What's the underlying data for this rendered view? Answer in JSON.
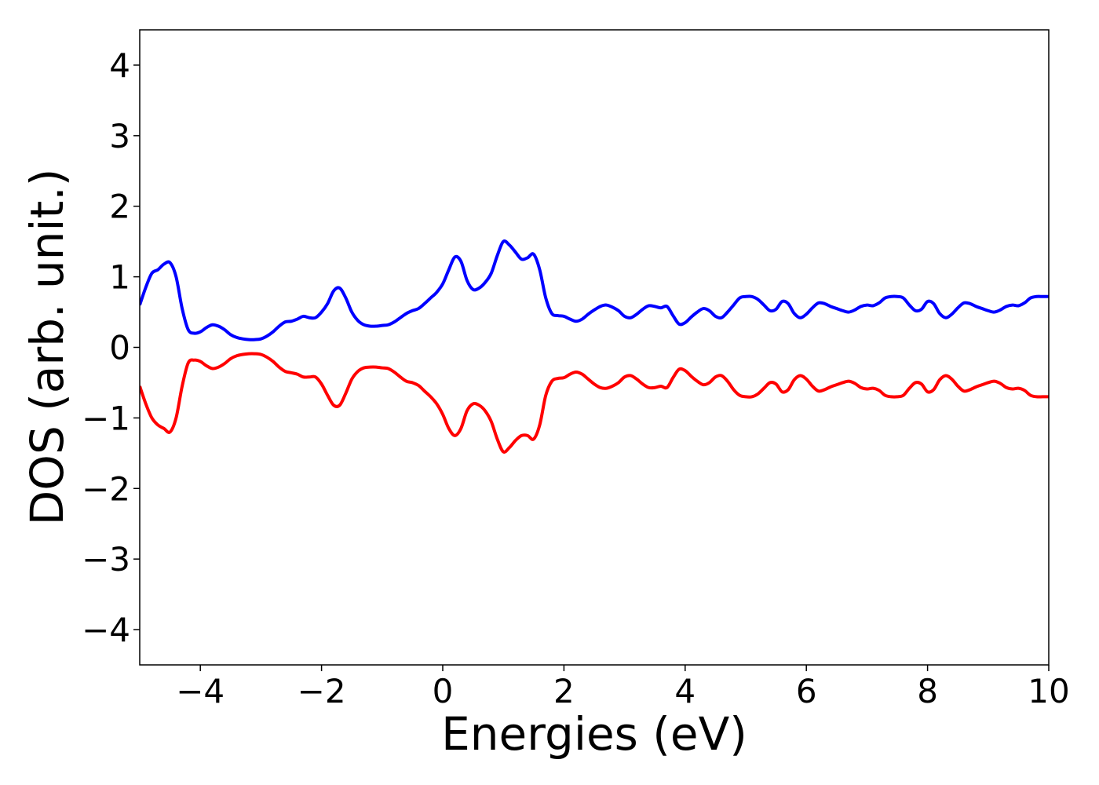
{
  "chart_data": {
    "type": "line",
    "title": "",
    "xlabel": "Energies (eV)",
    "ylabel": "DOS (arb. unit.)",
    "xlim": [
      -5,
      10
    ],
    "ylim": [
      -4.5,
      4.5
    ],
    "xticks": [
      -4,
      -2,
      0,
      2,
      4,
      6,
      8,
      10
    ],
    "yticks": [
      -4,
      -3,
      -2,
      -1,
      0,
      1,
      2,
      3,
      4
    ],
    "xtick_labels": [
      "−4",
      "−2",
      "0",
      "2",
      "4",
      "6",
      "8",
      "10"
    ],
    "ytick_labels": [
      "−4",
      "−3",
      "−2",
      "−1",
      "0",
      "1",
      "2",
      "3",
      "4"
    ],
    "grid": false,
    "legend": "none",
    "series": [
      {
        "color": "#0000ff",
        "x": [
          -5.0,
          -4.9,
          -4.8,
          -4.7,
          -4.6,
          -4.5,
          -4.4,
          -4.3,
          -4.2,
          -4.1,
          -4.0,
          -3.9,
          -3.8,
          -3.7,
          -3.6,
          -3.5,
          -3.4,
          -3.3,
          -3.2,
          -3.1,
          -3.0,
          -2.9,
          -2.8,
          -2.7,
          -2.6,
          -2.5,
          -2.4,
          -2.3,
          -2.2,
          -2.1,
          -2.0,
          -1.9,
          -1.8,
          -1.7,
          -1.6,
          -1.5,
          -1.4,
          -1.3,
          -1.2,
          -1.1,
          -1.0,
          -0.9,
          -0.8,
          -0.7,
          -0.6,
          -0.5,
          -0.4,
          -0.3,
          -0.2,
          -0.1,
          0.0,
          0.1,
          0.2,
          0.3,
          0.4,
          0.5,
          0.6,
          0.7,
          0.8,
          0.9,
          1.0,
          1.1,
          1.2,
          1.3,
          1.4,
          1.5,
          1.6,
          1.7,
          1.8,
          1.9,
          2.0,
          2.1,
          2.2,
          2.3,
          2.4,
          2.5,
          2.6,
          2.7,
          2.8,
          2.9,
          3.0,
          3.1,
          3.2,
          3.3,
          3.4,
          3.5,
          3.6,
          3.7,
          3.8,
          3.9,
          4.0,
          4.1,
          4.2,
          4.3,
          4.4,
          4.5,
          4.6,
          4.7,
          4.8,
          4.9,
          5.0,
          5.1,
          5.2,
          5.3,
          5.4,
          5.5,
          5.6,
          5.7,
          5.8,
          5.9,
          6.0,
          6.1,
          6.2,
          6.3,
          6.4,
          6.5,
          6.6,
          6.7,
          6.8,
          6.9,
          7.0,
          7.1,
          7.2,
          7.3,
          7.4,
          7.5,
          7.6,
          7.7,
          7.8,
          7.9,
          8.0,
          8.1,
          8.2,
          8.3,
          8.4,
          8.5,
          8.6,
          8.7,
          8.8,
          8.9,
          9.0,
          9.1,
          9.2,
          9.3,
          9.4,
          9.5,
          9.6,
          9.7,
          9.8,
          9.9,
          10.0
        ],
        "y": [
          0.6,
          0.85,
          1.05,
          1.1,
          1.18,
          1.2,
          1.0,
          0.55,
          0.25,
          0.2,
          0.22,
          0.28,
          0.32,
          0.3,
          0.25,
          0.18,
          0.14,
          0.12,
          0.11,
          0.11,
          0.12,
          0.16,
          0.22,
          0.3,
          0.36,
          0.37,
          0.4,
          0.44,
          0.42,
          0.42,
          0.5,
          0.62,
          0.8,
          0.84,
          0.7,
          0.5,
          0.38,
          0.32,
          0.3,
          0.3,
          0.31,
          0.32,
          0.36,
          0.42,
          0.48,
          0.52,
          0.55,
          0.62,
          0.7,
          0.78,
          0.9,
          1.1,
          1.28,
          1.22,
          0.95,
          0.82,
          0.84,
          0.92,
          1.05,
          1.3,
          1.5,
          1.45,
          1.35,
          1.25,
          1.27,
          1.32,
          1.1,
          0.7,
          0.48,
          0.45,
          0.44,
          0.4,
          0.37,
          0.4,
          0.47,
          0.53,
          0.58,
          0.6,
          0.57,
          0.52,
          0.44,
          0.42,
          0.47,
          0.54,
          0.59,
          0.58,
          0.56,
          0.58,
          0.45,
          0.33,
          0.35,
          0.43,
          0.5,
          0.55,
          0.52,
          0.44,
          0.42,
          0.5,
          0.6,
          0.7,
          0.72,
          0.72,
          0.68,
          0.6,
          0.52,
          0.54,
          0.65,
          0.62,
          0.48,
          0.42,
          0.47,
          0.56,
          0.63,
          0.62,
          0.58,
          0.55,
          0.52,
          0.5,
          0.53,
          0.58,
          0.6,
          0.59,
          0.63,
          0.7,
          0.72,
          0.72,
          0.7,
          0.6,
          0.52,
          0.54,
          0.65,
          0.62,
          0.48,
          0.42,
          0.47,
          0.56,
          0.63,
          0.62,
          0.58,
          0.55,
          0.52,
          0.5,
          0.53,
          0.58,
          0.6,
          0.59,
          0.63,
          0.7,
          0.72,
          0.72,
          0.72
        ]
      },
      {
        "color": "#ff0000",
        "x": [
          -5.0,
          -4.9,
          -4.8,
          -4.7,
          -4.6,
          -4.5,
          -4.4,
          -4.3,
          -4.2,
          -4.1,
          -4.0,
          -3.9,
          -3.8,
          -3.7,
          -3.6,
          -3.5,
          -3.4,
          -3.3,
          -3.2,
          -3.1,
          -3.0,
          -2.9,
          -2.8,
          -2.7,
          -2.6,
          -2.5,
          -2.4,
          -2.3,
          -2.2,
          -2.1,
          -2.0,
          -1.9,
          -1.8,
          -1.7,
          -1.6,
          -1.5,
          -1.4,
          -1.3,
          -1.2,
          -1.1,
          -1.0,
          -0.9,
          -0.8,
          -0.7,
          -0.6,
          -0.5,
          -0.4,
          -0.3,
          -0.2,
          -0.1,
          0.0,
          0.1,
          0.2,
          0.3,
          0.4,
          0.5,
          0.6,
          0.7,
          0.8,
          0.9,
          1.0,
          1.1,
          1.2,
          1.3,
          1.4,
          1.5,
          1.6,
          1.7,
          1.8,
          1.9,
          2.0,
          2.1,
          2.2,
          2.3,
          2.4,
          2.5,
          2.6,
          2.7,
          2.8,
          2.9,
          3.0,
          3.1,
          3.2,
          3.3,
          3.4,
          3.5,
          3.6,
          3.7,
          3.8,
          3.9,
          4.0,
          4.1,
          4.2,
          4.3,
          4.4,
          4.5,
          4.6,
          4.7,
          4.8,
          4.9,
          5.0,
          5.1,
          5.2,
          5.3,
          5.4,
          5.5,
          5.6,
          5.7,
          5.8,
          5.9,
          6.0,
          6.1,
          6.2,
          6.3,
          6.4,
          6.5,
          6.6,
          6.7,
          6.8,
          6.9,
          7.0,
          7.1,
          7.2,
          7.3,
          7.4,
          7.5,
          7.6,
          7.7,
          7.8,
          7.9,
          8.0,
          8.1,
          8.2,
          8.3,
          8.4,
          8.5,
          8.6,
          8.7,
          8.8,
          8.9,
          9.0,
          9.1,
          9.2,
          9.3,
          9.4,
          9.5,
          9.6,
          9.7,
          9.8,
          9.9,
          10.0
        ],
        "y": [
          -0.55,
          -0.8,
          -1.0,
          -1.1,
          -1.15,
          -1.2,
          -1.0,
          -0.55,
          -0.22,
          -0.18,
          -0.2,
          -0.26,
          -0.3,
          -0.28,
          -0.23,
          -0.16,
          -0.12,
          -0.1,
          -0.09,
          -0.09,
          -0.1,
          -0.14,
          -0.2,
          -0.28,
          -0.34,
          -0.36,
          -0.38,
          -0.42,
          -0.42,
          -0.42,
          -0.52,
          -0.68,
          -0.82,
          -0.82,
          -0.65,
          -0.45,
          -0.34,
          -0.29,
          -0.28,
          -0.28,
          -0.29,
          -0.3,
          -0.35,
          -0.42,
          -0.48,
          -0.5,
          -0.54,
          -0.62,
          -0.7,
          -0.8,
          -0.95,
          -1.15,
          -1.25,
          -1.15,
          -0.9,
          -0.8,
          -0.82,
          -0.9,
          -1.05,
          -1.3,
          -1.48,
          -1.42,
          -1.32,
          -1.25,
          -1.25,
          -1.3,
          -1.1,
          -0.68,
          -0.48,
          -0.44,
          -0.43,
          -0.38,
          -0.35,
          -0.38,
          -0.45,
          -0.52,
          -0.57,
          -0.58,
          -0.55,
          -0.5,
          -0.42,
          -0.4,
          -0.45,
          -0.52,
          -0.57,
          -0.57,
          -0.55,
          -0.57,
          -0.43,
          -0.31,
          -0.33,
          -0.41,
          -0.48,
          -0.53,
          -0.5,
          -0.42,
          -0.4,
          -0.48,
          -0.6,
          -0.68,
          -0.7,
          -0.7,
          -0.66,
          -0.58,
          -0.5,
          -0.52,
          -0.63,
          -0.6,
          -0.46,
          -0.4,
          -0.45,
          -0.55,
          -0.62,
          -0.6,
          -0.56,
          -0.53,
          -0.5,
          -0.48,
          -0.51,
          -0.57,
          -0.59,
          -0.58,
          -0.61,
          -0.68,
          -0.7,
          -0.7,
          -0.68,
          -0.58,
          -0.5,
          -0.52,
          -0.63,
          -0.6,
          -0.46,
          -0.4,
          -0.45,
          -0.55,
          -0.62,
          -0.6,
          -0.56,
          -0.53,
          -0.5,
          -0.48,
          -0.51,
          -0.57,
          -0.59,
          -0.58,
          -0.61,
          -0.68,
          -0.7,
          -0.7,
          -0.7
        ]
      }
    ]
  }
}
